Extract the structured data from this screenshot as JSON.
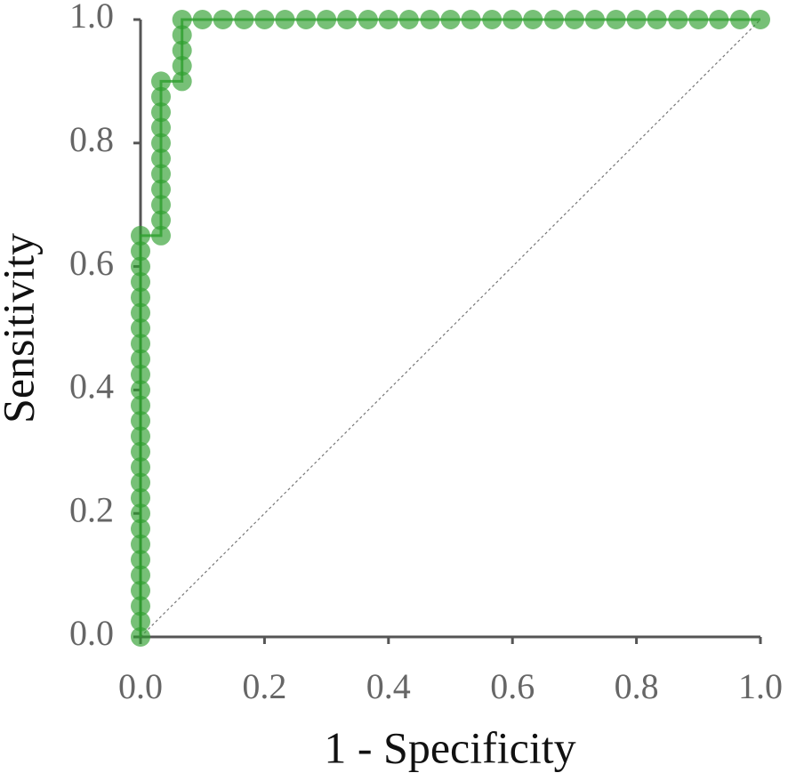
{
  "chart_data": {
    "type": "line",
    "x_label": "1 - Specificity",
    "y_label": "Sensitivity",
    "series": [
      {
        "color": "#2e9e2e",
        "x": [
          0,
          0,
          0,
          0,
          0,
          0,
          0,
          0,
          0,
          0,
          0,
          0,
          0,
          0,
          0,
          0,
          0,
          0,
          0,
          0,
          0,
          0,
          0,
          0,
          0,
          0,
          0,
          0.033,
          0.033,
          0.033,
          0.033,
          0.033,
          0.033,
          0.033,
          0.033,
          0.033,
          0.033,
          0.033,
          0.067,
          0.067,
          0.067,
          0.067,
          0.067,
          0.1,
          0.133,
          0.167,
          0.2,
          0.233,
          0.267,
          0.3,
          0.333,
          0.367,
          0.4,
          0.433,
          0.467,
          0.5,
          0.533,
          0.567,
          0.6,
          0.633,
          0.667,
          0.7,
          0.733,
          0.767,
          0.8,
          0.833,
          0.867,
          0.9,
          0.933,
          0.967,
          1.0
        ],
        "values": [
          0,
          0.025,
          0.05,
          0.075,
          0.1,
          0.125,
          0.15,
          0.175,
          0.2,
          0.225,
          0.25,
          0.275,
          0.3,
          0.325,
          0.35,
          0.375,
          0.4,
          0.425,
          0.45,
          0.475,
          0.5,
          0.525,
          0.55,
          0.575,
          0.6,
          0.625,
          0.65,
          0.65,
          0.675,
          0.7,
          0.725,
          0.75,
          0.775,
          0.8,
          0.825,
          0.85,
          0.875,
          0.9,
          0.9,
          0.925,
          0.95,
          0.975,
          1.0,
          1,
          1,
          1,
          1,
          1,
          1,
          1,
          1,
          1,
          1,
          1,
          1,
          1,
          1,
          1,
          1,
          1,
          1,
          1,
          1,
          1,
          1,
          1,
          1,
          1,
          1,
          1,
          1
        ]
      }
    ],
    "xlim": [
      0,
      1
    ],
    "ylim": [
      0,
      1
    ],
    "xticks": [
      {
        "value": 0,
        "label": "0.0"
      },
      0.2,
      0.4,
      0.6,
      0.8,
      {
        "value": 1,
        "label": "1.0"
      }
    ],
    "yticks": [
      {
        "value": 0,
        "label": "0.0"
      },
      0.2,
      0.4,
      0.6,
      0.8,
      {
        "value": 1,
        "label": "1.0"
      }
    ],
    "diagonal": true
  }
}
